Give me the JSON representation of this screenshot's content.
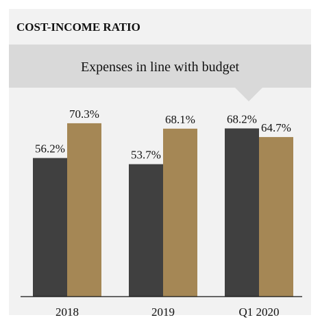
{
  "chart_data": {
    "type": "bar",
    "title": "COST-INCOME RATIO",
    "annotation": "Expenses in line with budget",
    "categories": [
      "2018",
      "2019",
      "Q1 2020"
    ],
    "series": [
      {
        "values": [
          56.2,
          53.7,
          68.2
        ],
        "labels": [
          "56.2%",
          "53.7%",
          "68.2%"
        ],
        "color": "#404040"
      },
      {
        "values": [
          70.3,
          68.1,
          64.7
        ],
        "labels": [
          "70.3%",
          "68.1%",
          "64.7%"
        ],
        "color": "#a58755"
      }
    ],
    "ylim": [
      0,
      85
    ],
    "grid": false,
    "legend": "none"
  },
  "colors": {
    "panel_background": "#f2f2f2",
    "callout_background": "#d9d9d9",
    "axis": "#111111"
  }
}
